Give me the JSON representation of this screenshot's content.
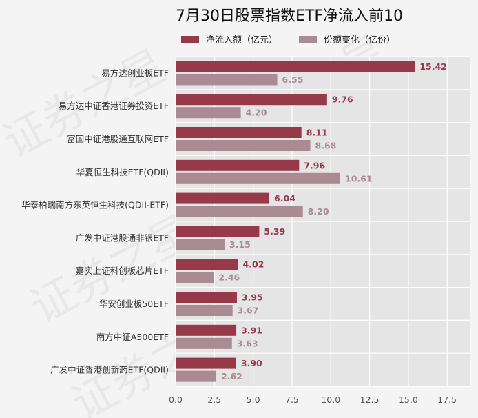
{
  "chart_data": {
    "type": "bar",
    "orientation": "horizontal",
    "title": "7月30日股票指数ETF净流入前10",
    "categories": [
      "易方达创业板ETF",
      "易方达中证香港证券投资ETF",
      "富国中证港股通互联网ETF",
      "华夏恒生科技ETF(QDII)",
      "华泰柏瑞南方东英恒生科技(QDII-ETF)",
      "广发中证港股通非银ETF",
      "嘉实上证科创板芯片ETF",
      "华安创业板50ETF",
      "南方中证A500ETF",
      "广发中证香港创新药ETF(QDII)"
    ],
    "series": [
      {
        "name": "净流入额（亿元）",
        "color": "#963a4a",
        "values": [
          15.42,
          9.76,
          8.11,
          7.96,
          6.04,
          5.39,
          4.02,
          3.95,
          3.91,
          3.9
        ],
        "labels": [
          "15.42",
          "9.76",
          "8.11",
          "7.96",
          "6.04",
          "5.39",
          "4.02",
          "3.95",
          "3.91",
          "3.90"
        ]
      },
      {
        "name": "份额变化（亿份）",
        "color": "#aa8a93",
        "values": [
          6.55,
          4.2,
          8.68,
          10.61,
          8.2,
          3.15,
          2.46,
          3.67,
          3.63,
          2.62
        ],
        "labels": [
          "6.55",
          "4.20",
          "8.68",
          "10.61",
          "8.20",
          "3.15",
          "2.46",
          "3.67",
          "3.63",
          "2.62"
        ]
      }
    ],
    "xlim": [
      0,
      19
    ],
    "xticks": [
      "0.0",
      "2.5",
      "5.0",
      "7.5",
      "10.0",
      "12.5",
      "15.0",
      "17.5"
    ],
    "xtick_values": [
      0,
      2.5,
      5,
      7.5,
      10,
      12.5,
      15,
      17.5
    ],
    "grid": true,
    "legend_position": "top-center",
    "plot_bg": "#e5e5e5",
    "watermark": "证券之星"
  }
}
